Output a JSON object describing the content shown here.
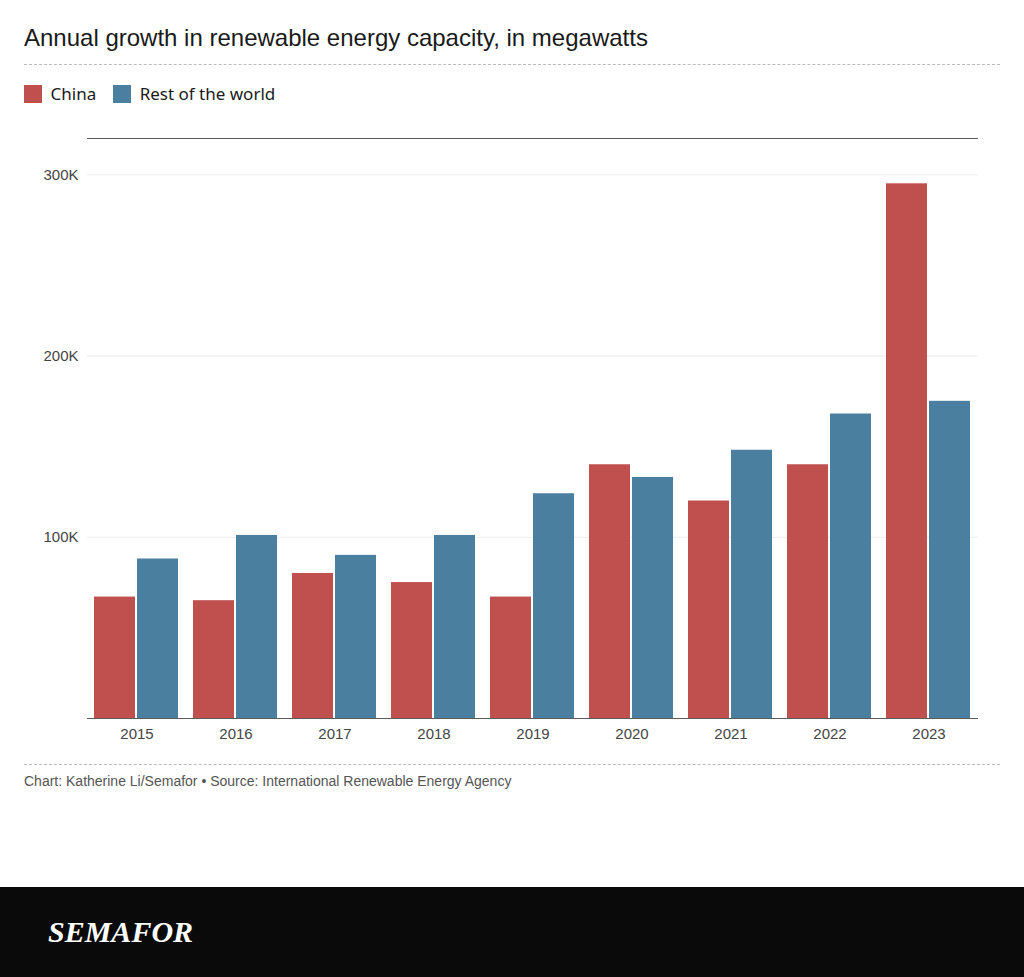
{
  "chart_data": {
    "type": "bar",
    "title": "Annual growth in renewable energy capacity, in megawatts",
    "categories": [
      "2015",
      "2016",
      "2017",
      "2018",
      "2019",
      "2020",
      "2021",
      "2022",
      "2023"
    ],
    "series": [
      {
        "name": "China",
        "color": "#c0504d",
        "values": [
          67000,
          65000,
          80000,
          75000,
          67000,
          140000,
          120000,
          140000,
          295000
        ]
      },
      {
        "name": "Rest of the world",
        "color": "#4a7fa0",
        "values": [
          88000,
          101000,
          90000,
          101000,
          124000,
          133000,
          148000,
          168000,
          175000
        ]
      }
    ],
    "ylim": [
      0,
      320000
    ],
    "yticks": [
      {
        "value": 100000,
        "label": "100K"
      },
      {
        "value": 200000,
        "label": "200K"
      },
      {
        "value": 300000,
        "label": "300K"
      }
    ],
    "grid": true,
    "legend": "top-left",
    "caption": "Chart: Katherine Li/Semafor • Source: International Renewable Energy Agency",
    "logo": "SEMAFOR"
  }
}
